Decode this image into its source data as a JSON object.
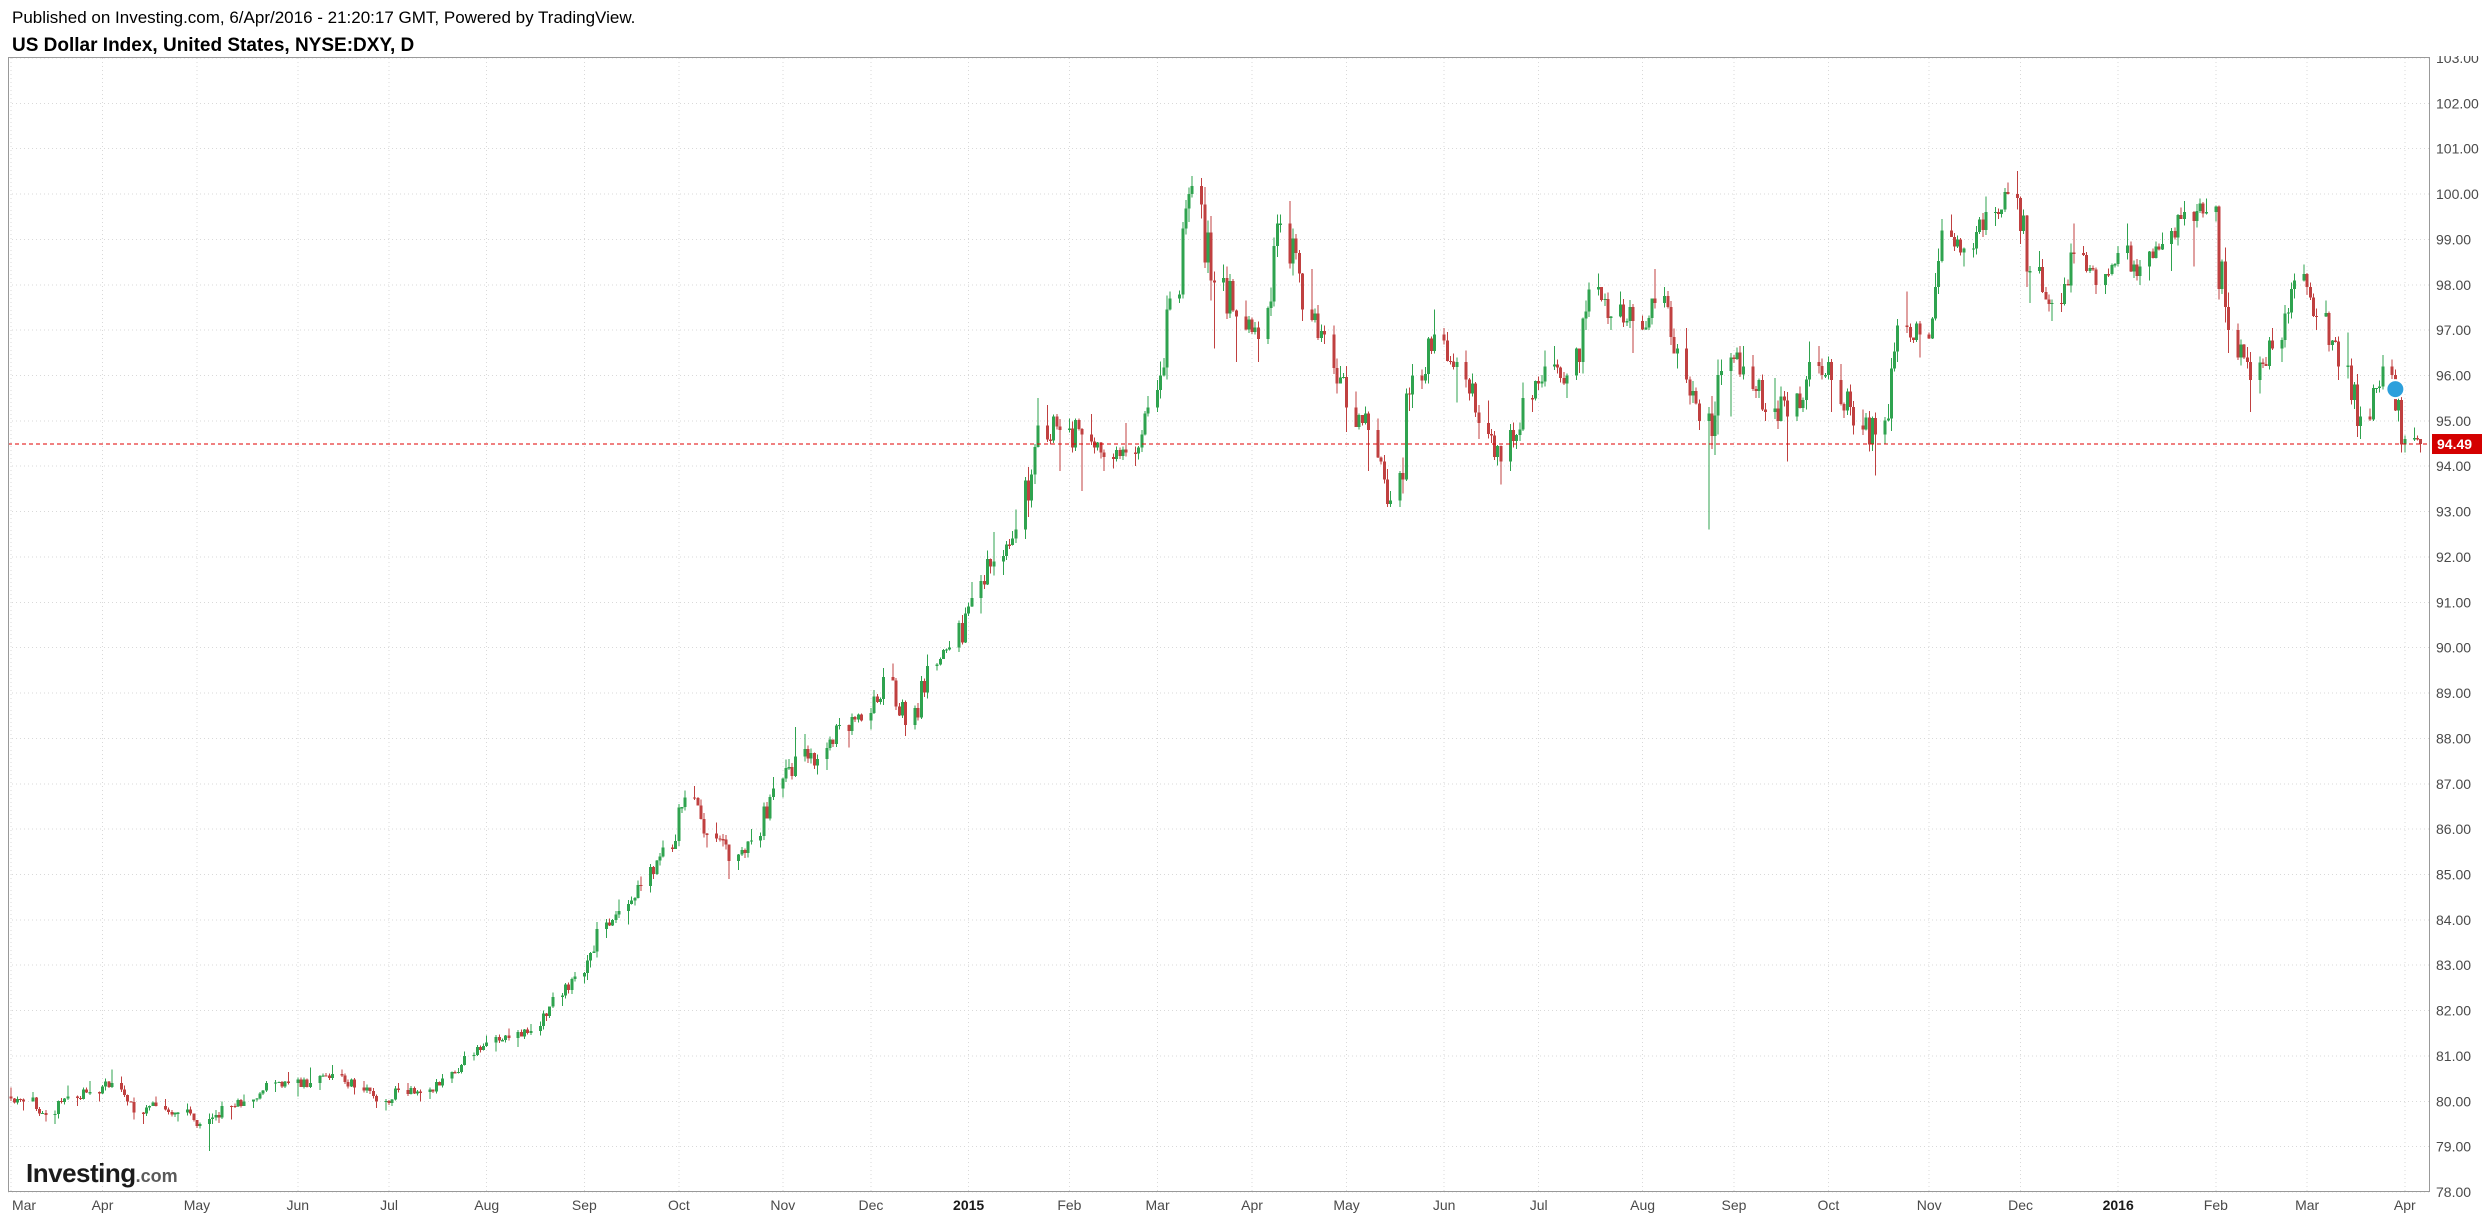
{
  "header": {
    "published_line": "Published on Investing.com, 6/Apr/2016 - 21:20:17 GMT, Powered by TradingView.",
    "title_line": "US Dollar Index, United States, NYSE:DXY, D"
  },
  "watermark": {
    "brand": "Investing",
    "suffix": ".com"
  },
  "chart_data": {
    "type": "candlestick",
    "title": "US Dollar Index, United States, NYSE:DXY, D",
    "symbol": "NYSE:DXY",
    "interval": "D",
    "legend_position": "none",
    "grid": true,
    "x_domain": {
      "start": "2014-03-02",
      "end": "2016-04-09"
    },
    "y_axis": {
      "min": 78,
      "max": 103,
      "step": 1
    },
    "y_ticks": [
      "103.00",
      "102.00",
      "101.00",
      "100.00",
      "99.00",
      "98.00",
      "97.00",
      "96.00",
      "95.00",
      "94.00",
      "93.00",
      "92.00",
      "91.00",
      "90.00",
      "89.00",
      "88.00",
      "87.00",
      "86.00",
      "85.00",
      "84.00",
      "83.00",
      "82.00",
      "81.00",
      "80.00",
      "79.00",
      "78.00"
    ],
    "x_axis_labels": [
      {
        "label": "Mar",
        "date": "2014-03-03",
        "bold": false
      },
      {
        "label": "Apr",
        "date": "2014-04-01",
        "bold": false
      },
      {
        "label": "May",
        "date": "2014-05-01",
        "bold": false
      },
      {
        "label": "Jun",
        "date": "2014-06-02",
        "bold": false
      },
      {
        "label": "Jul",
        "date": "2014-07-01",
        "bold": false
      },
      {
        "label": "Aug",
        "date": "2014-08-01",
        "bold": false
      },
      {
        "label": "Sep",
        "date": "2014-09-01",
        "bold": false
      },
      {
        "label": "Oct",
        "date": "2014-10-01",
        "bold": false
      },
      {
        "label": "Nov",
        "date": "2014-11-03",
        "bold": false
      },
      {
        "label": "Dec",
        "date": "2014-12-01",
        "bold": false
      },
      {
        "label": "2015",
        "date": "2015-01-01",
        "bold": true
      },
      {
        "label": "Feb",
        "date": "2015-02-02",
        "bold": false
      },
      {
        "label": "Mar",
        "date": "2015-03-02",
        "bold": false
      },
      {
        "label": "Apr",
        "date": "2015-04-01",
        "bold": false
      },
      {
        "label": "May",
        "date": "2015-05-01",
        "bold": false
      },
      {
        "label": "Jun",
        "date": "2015-06-01",
        "bold": false
      },
      {
        "label": "Jul",
        "date": "2015-07-01",
        "bold": false
      },
      {
        "label": "Aug",
        "date": "2015-08-03",
        "bold": false
      },
      {
        "label": "Sep",
        "date": "2015-09-01",
        "bold": false
      },
      {
        "label": "Oct",
        "date": "2015-10-01",
        "bold": false
      },
      {
        "label": "Nov",
        "date": "2015-11-02",
        "bold": false
      },
      {
        "label": "Dec",
        "date": "2015-12-01",
        "bold": false
      },
      {
        "label": "2016",
        "date": "2016-01-01",
        "bold": true
      },
      {
        "label": "Feb",
        "date": "2016-02-01",
        "bold": false
      },
      {
        "label": "Mar",
        "date": "2016-03-01",
        "bold": false
      },
      {
        "label": "Apr",
        "date": "2016-04-01",
        "bold": false
      }
    ],
    "last_price": 94.49,
    "last_price_label": "94.49",
    "last_price_color": "#d40000",
    "colors": {
      "up": "#2fa34f",
      "down": "#c04040",
      "grid": "#d9d9d9",
      "last_line": "#e00000"
    },
    "marker": {
      "date": "2016-03-29",
      "price": 95.7,
      "color": "#2da0dc"
    },
    "weekly_ohlc": [
      [
        "2014-03-07",
        80.1,
        80.3,
        79.8,
        80.0
      ],
      [
        "2014-03-14",
        80.0,
        80.2,
        79.55,
        79.7
      ],
      [
        "2014-03-21",
        79.7,
        80.35,
        79.5,
        80.1
      ],
      [
        "2014-03-28",
        80.1,
        80.45,
        79.9,
        80.2
      ],
      [
        "2014-04-04",
        80.2,
        80.7,
        80.0,
        80.4
      ],
      [
        "2014-04-11",
        80.4,
        80.55,
        79.6,
        79.75
      ],
      [
        "2014-04-18",
        79.75,
        80.1,
        79.5,
        79.9
      ],
      [
        "2014-04-25",
        79.9,
        80.05,
        79.55,
        79.75
      ],
      [
        "2014-05-02",
        79.75,
        79.95,
        79.4,
        79.5
      ],
      [
        "2014-05-09",
        79.5,
        80.0,
        78.9,
        79.9
      ],
      [
        "2014-05-16",
        79.9,
        80.15,
        79.6,
        80.0
      ],
      [
        "2014-05-23",
        80.0,
        80.45,
        79.85,
        80.4
      ],
      [
        "2014-05-30",
        80.4,
        80.65,
        80.2,
        80.4
      ],
      [
        "2014-06-06",
        80.4,
        80.75,
        80.1,
        80.4
      ],
      [
        "2014-06-13",
        80.4,
        80.8,
        80.25,
        80.6
      ],
      [
        "2014-06-20",
        80.6,
        80.7,
        80.15,
        80.3
      ],
      [
        "2014-06-27",
        80.3,
        80.45,
        79.85,
        80.0
      ],
      [
        "2014-07-04",
        80.0,
        80.4,
        79.8,
        80.25
      ],
      [
        "2014-07-11",
        80.25,
        80.4,
        80.0,
        80.2
      ],
      [
        "2014-07-18",
        80.2,
        80.6,
        80.05,
        80.5
      ],
      [
        "2014-07-25",
        80.5,
        81.1,
        80.4,
        81.0
      ],
      [
        "2014-08-01",
        81.0,
        81.45,
        80.9,
        81.3
      ],
      [
        "2014-08-08",
        81.3,
        81.6,
        81.1,
        81.4
      ],
      [
        "2014-08-15",
        81.4,
        81.7,
        81.2,
        81.55
      ],
      [
        "2014-08-22",
        81.55,
        82.4,
        81.45,
        82.3
      ],
      [
        "2014-08-29",
        82.3,
        82.85,
        82.1,
        82.75
      ],
      [
        "2014-09-05",
        82.75,
        83.95,
        82.6,
        83.8
      ],
      [
        "2014-09-12",
        83.8,
        84.45,
        83.6,
        84.2
      ],
      [
        "2014-09-19",
        84.2,
        84.95,
        83.9,
        84.75
      ],
      [
        "2014-09-26",
        84.75,
        85.75,
        84.6,
        85.6
      ],
      [
        "2014-10-03",
        85.6,
        86.85,
        85.5,
        86.7
      ],
      [
        "2014-10-10",
        86.7,
        86.95,
        85.6,
        85.9
      ],
      [
        "2014-10-17",
        85.9,
        86.15,
        84.9,
        85.3
      ],
      [
        "2014-10-24",
        85.3,
        86.0,
        85.1,
        85.75
      ],
      [
        "2014-10-31",
        85.75,
        87.15,
        85.6,
        86.9
      ],
      [
        "2014-11-07",
        86.9,
        88.25,
        86.7,
        87.6
      ],
      [
        "2014-11-14",
        87.6,
        88.1,
        87.2,
        87.55
      ],
      [
        "2014-11-21",
        87.55,
        88.45,
        87.3,
        88.3
      ],
      [
        "2014-11-28",
        88.3,
        88.55,
        87.8,
        88.4
      ],
      [
        "2014-12-05",
        88.4,
        89.55,
        88.2,
        89.35
      ],
      [
        "2014-12-12",
        89.35,
        89.65,
        88.05,
        88.3
      ],
      [
        "2014-12-19",
        88.3,
        89.85,
        88.2,
        89.6
      ],
      [
        "2014-12-26",
        89.6,
        90.15,
        89.5,
        90.0
      ],
      [
        "2015-01-02",
        90.0,
        91.45,
        89.9,
        91.1
      ],
      [
        "2015-01-09",
        91.1,
        92.55,
        90.75,
        91.9
      ],
      [
        "2015-01-16",
        91.9,
        93.05,
        91.6,
        92.6
      ],
      [
        "2015-01-23",
        92.6,
        95.5,
        92.4,
        94.9
      ],
      [
        "2015-01-30",
        94.9,
        95.35,
        93.9,
        94.8
      ],
      [
        "2015-02-06",
        94.8,
        95.05,
        93.45,
        94.7
      ],
      [
        "2015-02-13",
        94.7,
        95.15,
        93.9,
        94.2
      ],
      [
        "2015-02-20",
        94.2,
        94.95,
        93.95,
        94.3
      ],
      [
        "2015-02-27",
        94.3,
        95.55,
        94.0,
        95.3
      ],
      [
        "2015-03-06",
        95.3,
        97.85,
        95.2,
        97.7
      ],
      [
        "2015-03-13",
        97.7,
        100.4,
        97.6,
        100.18
      ],
      [
        "2015-03-20",
        100.18,
        100.35,
        96.6,
        98.05
      ],
      [
        "2015-03-27",
        98.05,
        98.45,
        96.3,
        97.3
      ],
      [
        "2015-04-03",
        97.3,
        97.65,
        96.3,
        96.8
      ],
      [
        "2015-04-10",
        96.8,
        99.55,
        96.7,
        99.35
      ],
      [
        "2015-04-17",
        99.35,
        99.85,
        97.2,
        97.45
      ],
      [
        "2015-04-24",
        97.45,
        98.35,
        96.7,
        96.9
      ],
      [
        "2015-05-01",
        96.9,
        97.1,
        94.75,
        95.3
      ],
      [
        "2015-05-08",
        95.3,
        95.65,
        93.9,
        94.8
      ],
      [
        "2015-05-15",
        94.8,
        95.05,
        93.1,
        93.25
      ],
      [
        "2015-05-22",
        93.25,
        96.25,
        93.1,
        96.0
      ],
      [
        "2015-05-29",
        96.0,
        97.45,
        95.7,
        96.9
      ],
      [
        "2015-06-05",
        96.9,
        97.05,
        95.4,
        96.3
      ],
      [
        "2015-06-12",
        96.3,
        96.55,
        94.6,
        94.95
      ],
      [
        "2015-06-19",
        94.95,
        95.45,
        93.6,
        94.1
      ],
      [
        "2015-06-26",
        94.1,
        95.85,
        93.9,
        95.5
      ],
      [
        "2015-07-03",
        95.5,
        96.55,
        95.2,
        96.2
      ],
      [
        "2015-07-10",
        96.2,
        96.65,
        95.5,
        96.0
      ],
      [
        "2015-07-17",
        96.0,
        98.05,
        95.9,
        97.9
      ],
      [
        "2015-07-24",
        97.9,
        98.25,
        97.0,
        97.3
      ],
      [
        "2015-07-31",
        97.3,
        97.85,
        96.5,
        97.2
      ],
      [
        "2015-08-07",
        97.2,
        98.35,
        97.0,
        97.6
      ],
      [
        "2015-08-14",
        97.6,
        97.95,
        96.15,
        96.6
      ],
      [
        "2015-08-21",
        96.6,
        97.05,
        94.8,
        95.0
      ],
      [
        "2015-08-28",
        95.0,
        96.35,
        92.6,
        96.1
      ],
      [
        "2015-09-04",
        96.1,
        96.65,
        95.1,
        96.2
      ],
      [
        "2015-09-11",
        96.2,
        96.45,
        95.0,
        95.2
      ],
      [
        "2015-09-18",
        95.2,
        95.95,
        94.1,
        95.1
      ],
      [
        "2015-09-25",
        95.1,
        96.75,
        95.0,
        96.3
      ],
      [
        "2015-10-02",
        96.3,
        96.65,
        95.2,
        95.9
      ],
      [
        "2015-10-09",
        95.9,
        96.25,
        94.7,
        94.9
      ],
      [
        "2015-10-16",
        94.9,
        95.25,
        93.8,
        94.7
      ],
      [
        "2015-10-23",
        94.7,
        97.25,
        94.5,
        97.1
      ],
      [
        "2015-10-30",
        97.1,
        97.85,
        96.4,
        96.9
      ],
      [
        "2015-11-06",
        96.9,
        99.45,
        96.8,
        99.2
      ],
      [
        "2015-11-13",
        99.2,
        99.55,
        98.4,
        98.8
      ],
      [
        "2015-11-20",
        98.8,
        99.95,
        98.6,
        99.6
      ],
      [
        "2015-11-27",
        99.6,
        100.25,
        99.3,
        100.0
      ],
      [
        "2015-12-04",
        100.0,
        100.51,
        97.6,
        98.3
      ],
      [
        "2015-12-11",
        98.3,
        98.75,
        97.2,
        97.6
      ],
      [
        "2015-12-18",
        97.6,
        99.35,
        97.4,
        98.7
      ],
      [
        "2015-12-25",
        98.7,
        98.85,
        97.8,
        98.0
      ],
      [
        "2016-01-01",
        98.0,
        98.85,
        97.8,
        98.7
      ],
      [
        "2016-01-08",
        98.7,
        99.35,
        98.0,
        98.4
      ],
      [
        "2016-01-15",
        98.4,
        99.15,
        98.1,
        98.9
      ],
      [
        "2016-01-22",
        98.9,
        99.85,
        98.3,
        99.6
      ],
      [
        "2016-01-29",
        99.6,
        99.9,
        98.4,
        99.6
      ],
      [
        "2016-02-05",
        99.6,
        99.75,
        96.5,
        97.0
      ],
      [
        "2016-02-12",
        97.0,
        97.15,
        95.2,
        95.9
      ],
      [
        "2016-02-19",
        95.9,
        97.05,
        95.6,
        96.6
      ],
      [
        "2016-02-26",
        96.6,
        98.25,
        96.3,
        98.1
      ],
      [
        "2016-03-04",
        98.1,
        98.45,
        97.0,
        97.3
      ],
      [
        "2016-03-11",
        97.3,
        97.65,
        95.9,
        96.2
      ],
      [
        "2016-03-18",
        96.2,
        96.95,
        94.6,
        95.1
      ],
      [
        "2016-03-25",
        95.1,
        96.45,
        95.0,
        96.2
      ],
      [
        "2016-04-01",
        96.2,
        96.35,
        94.3,
        94.6
      ],
      [
        "2016-04-06",
        94.6,
        94.85,
        94.3,
        94.49
      ]
    ]
  }
}
